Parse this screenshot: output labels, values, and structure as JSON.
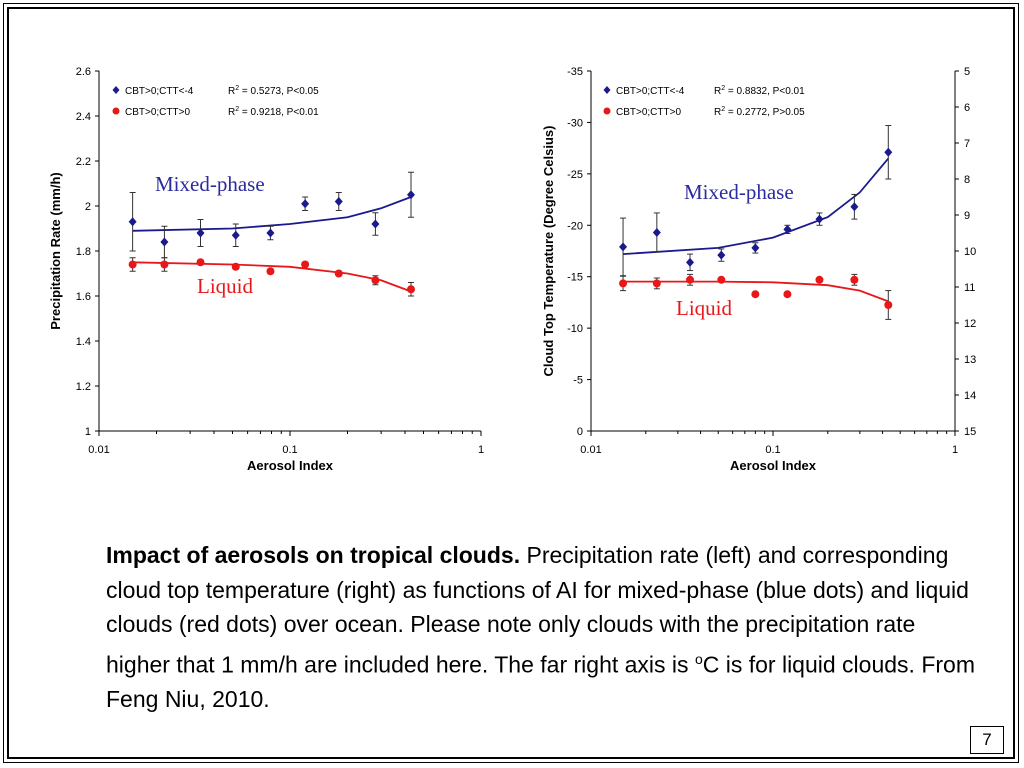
{
  "chart_data": [
    {
      "type": "scatter",
      "ylabel": "Precipitation Rate (mm/h)",
      "xlabel": "Aerosol Index",
      "x_scale": "log",
      "xlim": [
        0.01,
        1
      ],
      "ylim": [
        1,
        2.6
      ],
      "x_tick_labels": [
        "0.01",
        "0.1",
        "1"
      ],
      "y_tick_labels": [
        "1",
        "1.2",
        "1.4",
        "1.6",
        "1.8",
        "2",
        "2.2",
        "2.4",
        "2.6"
      ],
      "legend": [
        {
          "label": "CBT>0;CTT<-4",
          "stat_prefix": "R",
          "stat_sup": "2",
          "stat_suffix": " = 0.5273, P<0.05"
        },
        {
          "label": "CBT>0;CTT>0",
          "stat_prefix": "R",
          "stat_sup": "2",
          "stat_suffix": " = 0.9218, P<0.01"
        }
      ],
      "annotations": [
        "Mixed-phase",
        "Liquid"
      ],
      "series": [
        {
          "name": "CBT>0;CTT<-4",
          "color": "#1a1a8c",
          "marker": "diamond",
          "x": [
            0.015,
            0.022,
            0.034,
            0.052,
            0.079,
            0.12,
            0.18,
            0.28,
            0.43
          ],
          "y": [
            1.93,
            1.84,
            1.88,
            1.87,
            1.88,
            2.01,
            2.02,
            1.92,
            2.05
          ],
          "err": [
            0.13,
            0.07,
            0.06,
            0.05,
            0.03,
            0.03,
            0.04,
            0.05,
            0.1
          ],
          "fit": [
            [
              0.015,
              1.89
            ],
            [
              0.05,
              1.9
            ],
            [
              0.1,
              1.92
            ],
            [
              0.2,
              1.95
            ],
            [
              0.3,
              1.99
            ],
            [
              0.43,
              2.04
            ]
          ]
        },
        {
          "name": "CBT>0;CTT>0",
          "color": "#e8171a",
          "marker": "circle",
          "x": [
            0.015,
            0.022,
            0.034,
            0.052,
            0.079,
            0.12,
            0.18,
            0.28,
            0.43
          ],
          "y": [
            1.74,
            1.74,
            1.75,
            1.73,
            1.71,
            1.74,
            1.7,
            1.67,
            1.63
          ],
          "err": [
            0.03,
            0.03,
            0.01,
            0.01,
            0.01,
            0.01,
            0.01,
            0.02,
            0.03
          ],
          "fit": [
            [
              0.015,
              1.75
            ],
            [
              0.05,
              1.74
            ],
            [
              0.1,
              1.73
            ],
            [
              0.2,
              1.7
            ],
            [
              0.3,
              1.67
            ],
            [
              0.43,
              1.62
            ]
          ]
        }
      ]
    },
    {
      "type": "scatter",
      "ylabel": "Cloud Top Temperature (Degree Celsius)",
      "xlabel": "Aerosol Index",
      "x_scale": "log",
      "xlim": [
        0.01,
        1
      ],
      "ylim": [
        0,
        -35
      ],
      "y2lim": [
        5,
        15
      ],
      "x_tick_labels": [
        "0.01",
        "0.1",
        "1"
      ],
      "y_tick_labels": [
        "0",
        "-5",
        "-10",
        "-15",
        "-20",
        "-25",
        "-30",
        "-35"
      ],
      "y2_tick_labels": [
        "5",
        "6",
        "7",
        "8",
        "9",
        "10",
        "11",
        "12",
        "13",
        "14",
        "15"
      ],
      "legend": [
        {
          "label": "CBT>0;CTT<-4",
          "stat_prefix": "R",
          "stat_sup": "2",
          "stat_suffix": " = 0.8832, P<0.01"
        },
        {
          "label": "CBT>0;CTT>0",
          "stat_prefix": "R",
          "stat_sup": "2",
          "stat_suffix": " = 0.2772, P>0.05"
        }
      ],
      "annotations": [
        "Mixed-phase",
        "Liquid"
      ],
      "series": [
        {
          "name": "CBT>0;CTT<-4",
          "axis": "left",
          "color": "#1a1a8c",
          "marker": "diamond",
          "x": [
            0.015,
            0.023,
            0.035,
            0.052,
            0.08,
            0.12,
            0.18,
            0.28,
            0.43
          ],
          "y": [
            -17.9,
            -19.3,
            -16.4,
            -17.1,
            -17.8,
            -19.6,
            -20.6,
            -21.8,
            -27.1
          ],
          "err": [
            2.8,
            1.9,
            0.8,
            0.6,
            0.5,
            0.4,
            0.6,
            1.2,
            2.6
          ],
          "fit": [
            [
              0.015,
              -17.2
            ],
            [
              0.05,
              -17.8
            ],
            [
              0.1,
              -18.8
            ],
            [
              0.2,
              -20.8
            ],
            [
              0.3,
              -23.2
            ],
            [
              0.43,
              -26.5
            ]
          ]
        },
        {
          "name": "CBT>0;CTT>0",
          "axis": "right",
          "color": "#e8171a",
          "marker": "circle",
          "x": [
            0.015,
            0.023,
            0.035,
            0.052,
            0.08,
            0.12,
            0.18,
            0.28,
            0.43
          ],
          "y": [
            10.9,
            10.9,
            10.8,
            10.8,
            11.2,
            11.2,
            10.8,
            10.8,
            11.5
          ],
          "err": [
            0.2,
            0.15,
            0.15,
            0.05,
            0.05,
            0.05,
            0.05,
            0.15,
            0.4
          ],
          "fit": [
            [
              0.015,
              10.85
            ],
            [
              0.05,
              10.85
            ],
            [
              0.1,
              10.87
            ],
            [
              0.2,
              10.95
            ],
            [
              0.3,
              11.1
            ],
            [
              0.43,
              11.4
            ]
          ]
        }
      ]
    }
  ],
  "caption": {
    "bold": "Impact of aerosols on tropical clouds.",
    "text_a": "  Precipitation rate (left) and corresponding cloud top temperature (right) as functions of AI for mixed-phase (blue dots) and liquid clouds (red dots) over ocean.  Please note only clouds with the precipitation rate higher that 1 mm/h are included here.  The far right axis is ",
    "sup": "o",
    "text_b": "C is for liquid clouds.  From Feng Niu, 2010."
  },
  "page_number": "7"
}
